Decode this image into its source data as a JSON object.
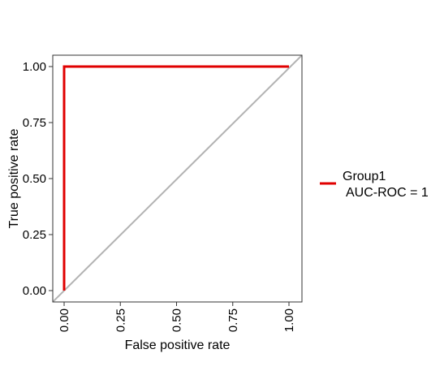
{
  "chart_data": {
    "type": "line",
    "title": "",
    "xlabel": "False positive rate",
    "ylabel": "True positive rate",
    "xlim": [
      0,
      1
    ],
    "ylim": [
      0,
      1
    ],
    "x_ticks": [
      0,
      0.25,
      0.5,
      0.75,
      1
    ],
    "x_tick_labels": [
      "0.00",
      "0.25",
      "0.50",
      "0.75",
      "1.00"
    ],
    "y_ticks": [
      0,
      0.25,
      0.5,
      0.75,
      1
    ],
    "y_tick_labels": [
      "0.00",
      "0.25",
      "0.50",
      "0.75",
      "1.00"
    ],
    "grid": false,
    "legend_position": "right",
    "series": [
      {
        "name": "Group1",
        "legend_label_line1": "Group1",
        "legend_label_line2": "AUC-ROC = 1",
        "color": "#e00000",
        "x": [
          0,
          0,
          1
        ],
        "y": [
          0,
          1,
          1
        ]
      }
    ],
    "reference_line": {
      "color": "#b3b3b3",
      "x": [
        0,
        1
      ],
      "y": [
        0,
        1
      ]
    }
  }
}
